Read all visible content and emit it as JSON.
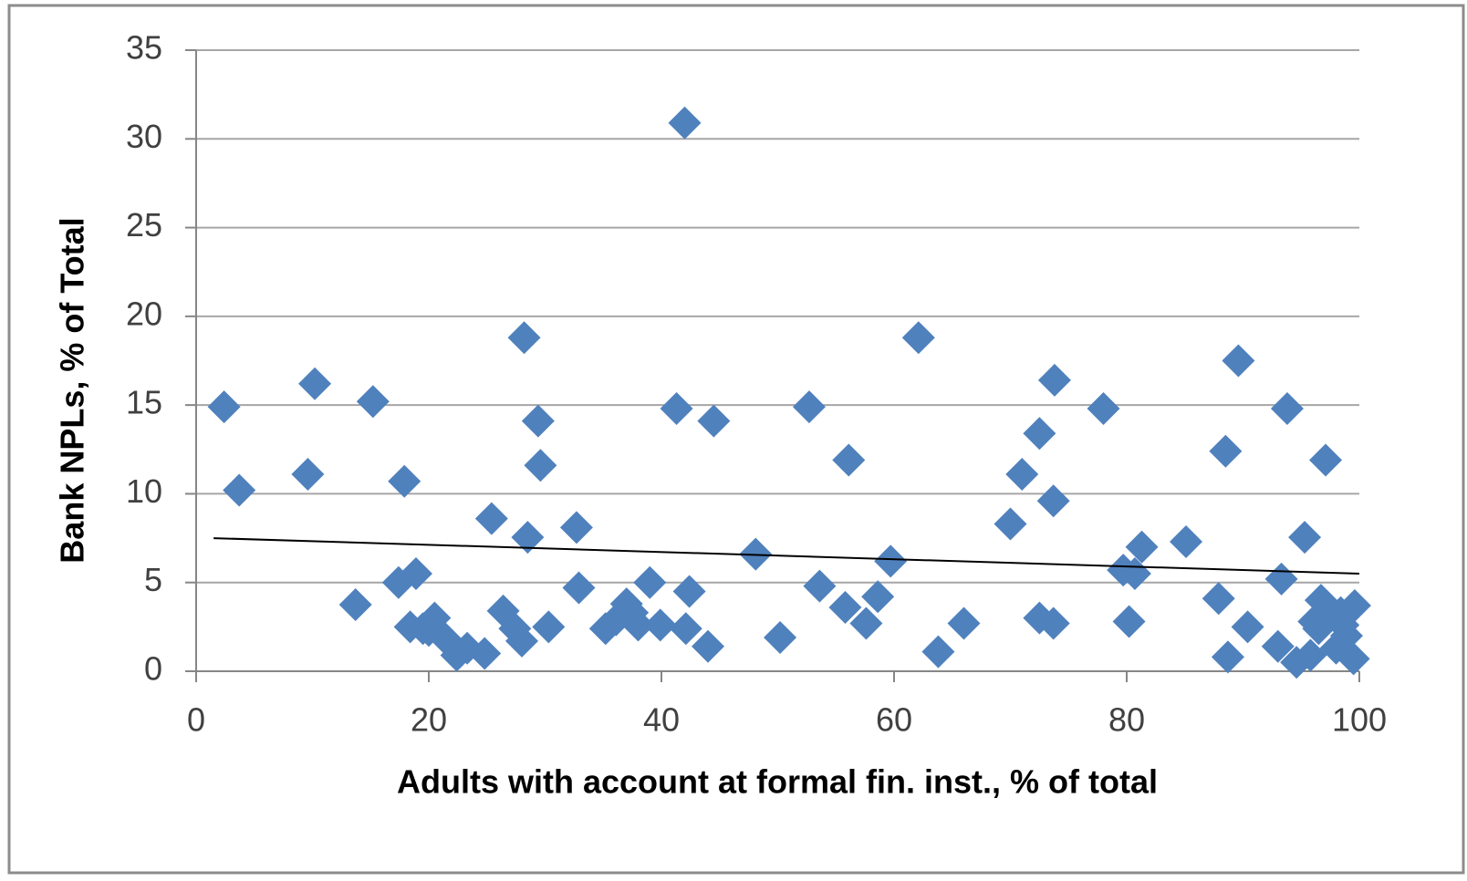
{
  "chart_data": {
    "type": "scatter",
    "x_label": "Adults with account at formal fin. inst., % of total",
    "y_label": "Bank  NPLs, % of Total",
    "xlim": [
      0,
      100
    ],
    "xticks": [
      0,
      20,
      40,
      60,
      80,
      100
    ],
    "ylim": [
      0,
      35
    ],
    "yticks": [
      0,
      5,
      10,
      15,
      20,
      25,
      30,
      35
    ],
    "grid": true,
    "series": [
      {
        "color": "#4f81bd",
        "x": [
          2.4,
          3.7,
          9.6,
          10.2,
          13.7,
          15.2,
          17.9,
          17.4,
          18.9,
          18.4,
          19.5,
          20.5,
          20.0,
          21.4,
          22.4,
          23.3,
          24.8,
          25.4,
          26.4,
          27.4,
          28.0,
          28.2,
          28.5,
          29.4,
          29.6,
          30.3,
          32.7,
          32.9,
          35.2,
          36.1,
          37.0,
          37.5,
          38.0,
          39.0,
          39.9,
          41.3,
          42.0,
          42.4,
          42.1,
          44.0,
          44.5,
          48.1,
          50.2,
          52.7,
          53.6,
          55.8,
          56.1,
          57.6,
          58.6,
          59.7,
          62.1,
          63.8,
          66.0,
          70.0,
          71.0,
          72.5,
          72.5,
          73.7,
          73.7,
          73.8,
          78.0,
          79.7,
          80.7,
          80.2,
          81.3,
          85.1,
          87.9,
          88.5,
          88.7,
          89.6,
          90.4,
          93.0,
          93.3,
          93.8,
          94.6,
          95.3,
          95.8,
          96.1,
          96.7,
          97.1,
          97.0,
          96.5,
          98.0,
          98.6,
          98.9,
          99.5,
          99.6,
          98.4
        ],
        "values": [
          14.9,
          10.2,
          11.1,
          16.2,
          3.75,
          15.2,
          10.7,
          5.0,
          5.5,
          2.5,
          2.4,
          3.0,
          2.3,
          1.85,
          0.9,
          1.3,
          1.0,
          8.6,
          3.4,
          2.4,
          1.7,
          18.8,
          7.55,
          14.1,
          11.6,
          2.5,
          8.1,
          4.7,
          2.4,
          2.9,
          3.8,
          3.3,
          2.6,
          5.0,
          2.6,
          14.8,
          30.9,
          4.5,
          2.4,
          1.4,
          14.1,
          6.6,
          1.9,
          14.9,
          4.8,
          3.6,
          11.9,
          2.7,
          4.2,
          6.2,
          18.8,
          1.1,
          2.7,
          8.3,
          11.1,
          13.4,
          3.0,
          2.7,
          9.6,
          16.4,
          14.8,
          5.7,
          5.5,
          2.8,
          7.0,
          7.3,
          4.1,
          12.4,
          0.8,
          17.5,
          2.5,
          1.4,
          5.2,
          14.8,
          0.5,
          7.55,
          0.9,
          2.8,
          4.0,
          11.9,
          3.3,
          2.4,
          1.3,
          2.6,
          2.0,
          0.7,
          3.7,
          3.3
        ]
      }
    ],
    "trendline": {
      "color": "#000000",
      "x": [
        1.5,
        100
      ],
      "values": [
        7.5,
        5.5
      ]
    }
  }
}
